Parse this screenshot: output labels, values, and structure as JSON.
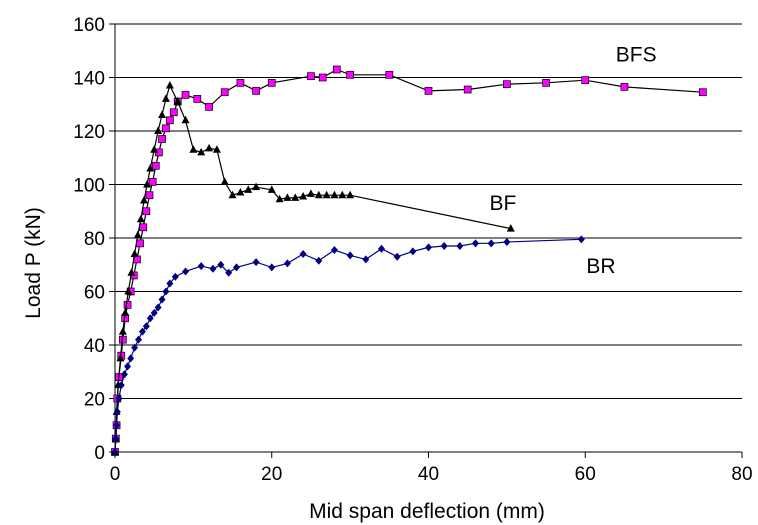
{
  "chart_data": {
    "type": "scatter",
    "title": "",
    "xlabel": "Mid span deflection (mm)",
    "ylabel": "Load P (kN)",
    "xlim": [
      0,
      80
    ],
    "ylim": [
      0,
      160
    ],
    "x_ticks": [
      0,
      20,
      40,
      60,
      80
    ],
    "y_ticks": [
      0,
      20,
      40,
      60,
      80,
      100,
      120,
      140,
      160
    ],
    "grid": "horizontal",
    "legend": "inline labels",
    "series": [
      {
        "name": "BFS",
        "color": "#ff00ff",
        "marker": "square",
        "points": [
          [
            0,
            0
          ],
          [
            0.1,
            5
          ],
          [
            0.2,
            10
          ],
          [
            0.3,
            20
          ],
          [
            0.5,
            28
          ],
          [
            0.8,
            36
          ],
          [
            1.0,
            42
          ],
          [
            1.3,
            50
          ],
          [
            1.6,
            55
          ],
          [
            2.0,
            60
          ],
          [
            2.4,
            66
          ],
          [
            2.8,
            72
          ],
          [
            3.2,
            78
          ],
          [
            3.6,
            84
          ],
          [
            4.0,
            90
          ],
          [
            4.4,
            96
          ],
          [
            4.8,
            101
          ],
          [
            5.2,
            107
          ],
          [
            5.6,
            112
          ],
          [
            6.0,
            117
          ],
          [
            6.5,
            121
          ],
          [
            7.0,
            124
          ],
          [
            7.5,
            127
          ],
          [
            8.0,
            131
          ],
          [
            9.0,
            133.5
          ],
          [
            10.5,
            132
          ],
          [
            12,
            129
          ],
          [
            14,
            134.5
          ],
          [
            16,
            138
          ],
          [
            18,
            135
          ],
          [
            20,
            138
          ],
          [
            25,
            140.5
          ],
          [
            26.5,
            140
          ],
          [
            28.3,
            143
          ],
          [
            30,
            141
          ],
          [
            35,
            141
          ],
          [
            40,
            135
          ],
          [
            45,
            135.5
          ],
          [
            50,
            137.5
          ],
          [
            55,
            138
          ],
          [
            60,
            139
          ],
          [
            65,
            136.5
          ],
          [
            75,
            134.5
          ]
        ]
      },
      {
        "name": "BF",
        "color": "#000000",
        "marker": "triangle",
        "points": [
          [
            0,
            0
          ],
          [
            0.1,
            5
          ],
          [
            0.2,
            15
          ],
          [
            0.4,
            25
          ],
          [
            0.7,
            35
          ],
          [
            1.0,
            45
          ],
          [
            1.3,
            52
          ],
          [
            1.7,
            60
          ],
          [
            2.1,
            67
          ],
          [
            2.5,
            74
          ],
          [
            2.9,
            81
          ],
          [
            3.3,
            87
          ],
          [
            3.7,
            94
          ],
          [
            4.1,
            100
          ],
          [
            4.5,
            106
          ],
          [
            5.0,
            113
          ],
          [
            5.5,
            120
          ],
          [
            6.0,
            126
          ],
          [
            6.5,
            132
          ],
          [
            7.0,
            137
          ],
          [
            8.0,
            131
          ],
          [
            9.0,
            124
          ],
          [
            10.0,
            113
          ],
          [
            11.0,
            112
          ],
          [
            12.0,
            113.5
          ],
          [
            13.0,
            113
          ],
          [
            14.0,
            101
          ],
          [
            15.0,
            96
          ],
          [
            16.0,
            97
          ],
          [
            17.0,
            98
          ],
          [
            18.0,
            99
          ],
          [
            20.0,
            98
          ],
          [
            21.0,
            94.5
          ],
          [
            22.0,
            95
          ],
          [
            23.0,
            95
          ],
          [
            24.0,
            95.5
          ],
          [
            25.0,
            96.5
          ],
          [
            26.0,
            96
          ],
          [
            27.0,
            96
          ],
          [
            28.0,
            96
          ],
          [
            29.0,
            96
          ],
          [
            30.0,
            96
          ],
          [
            50.5,
            83.5
          ]
        ]
      },
      {
        "name": "BR",
        "color": "#000080",
        "marker": "diamond",
        "points": [
          [
            0,
            0
          ],
          [
            0.1,
            5
          ],
          [
            0.2,
            10
          ],
          [
            0.3,
            15
          ],
          [
            0.5,
            20
          ],
          [
            0.8,
            25
          ],
          [
            1.2,
            29
          ],
          [
            1.6,
            32
          ],
          [
            2.0,
            35
          ],
          [
            2.5,
            39
          ],
          [
            3.0,
            42
          ],
          [
            3.5,
            45
          ],
          [
            4.0,
            47
          ],
          [
            4.5,
            50
          ],
          [
            5.0,
            52
          ],
          [
            5.5,
            54
          ],
          [
            6.0,
            57
          ],
          [
            6.5,
            60
          ],
          [
            7.0,
            63
          ],
          [
            7.7,
            65.5
          ],
          [
            9.0,
            67.5
          ],
          [
            11,
            69.5
          ],
          [
            12.5,
            68.5
          ],
          [
            13.5,
            70
          ],
          [
            14.5,
            67
          ],
          [
            15.5,
            69
          ],
          [
            18,
            71
          ],
          [
            20,
            69
          ],
          [
            22,
            70.5
          ],
          [
            24,
            74
          ],
          [
            26,
            71.5
          ],
          [
            28,
            75.5
          ],
          [
            30,
            73.5
          ],
          [
            32,
            72
          ],
          [
            34,
            76
          ],
          [
            36,
            73
          ],
          [
            38,
            75
          ],
          [
            40,
            76.5
          ],
          [
            42,
            77
          ],
          [
            44,
            77
          ],
          [
            46,
            78
          ],
          [
            48,
            78
          ],
          [
            50,
            78.5
          ],
          [
            59.5,
            79.5
          ]
        ]
      }
    ]
  }
}
